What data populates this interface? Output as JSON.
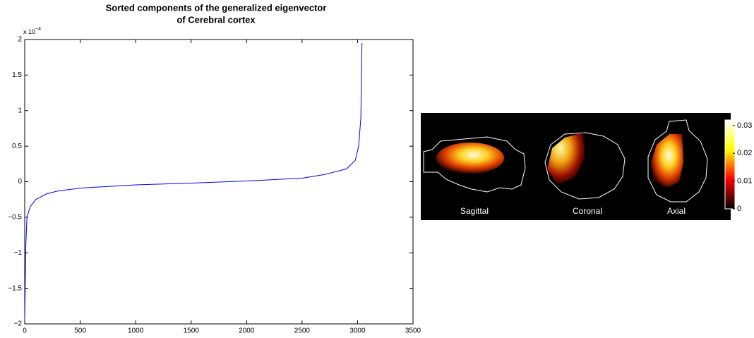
{
  "chart_data": [
    {
      "type": "line",
      "title": [
        "Sorted components of the generalized eigenvector",
        "of Cerebral cortex"
      ],
      "y_multiplier": {
        "base": "x 10",
        "exponent": "−4"
      },
      "x": [
        0,
        10,
        20,
        50,
        100,
        200,
        300,
        500,
        1000,
        1500,
        2000,
        2500,
        2700,
        2900,
        2980,
        3010,
        3030,
        3040
      ],
      "series": [
        {
          "color": "#0000ff",
          "values": [
            -1.95,
            -0.9,
            -0.5,
            -0.35,
            -0.25,
            -0.17,
            -0.13,
            -0.09,
            -0.045,
            -0.02,
            0.01,
            0.05,
            0.1,
            0.18,
            0.3,
            0.5,
            0.9,
            1.95
          ]
        }
      ],
      "xlim": [
        0,
        3500
      ],
      "xticks": [
        0,
        500,
        1000,
        1500,
        2000,
        2500,
        3000,
        3500
      ],
      "ylim": [
        -2,
        2
      ],
      "yticks": [
        {
          "value": -2,
          "label": "−2"
        },
        {
          "value": -1.5,
          "label": "−1.5"
        },
        {
          "value": -1,
          "label": "−1"
        },
        {
          "value": -0.5,
          "label": "−0.5"
        },
        0,
        0.5,
        1,
        1.5,
        2
      ],
      "grid": false
    },
    {
      "type": "colorbar",
      "views": [
        "Sagittal",
        "Coronal",
        "Axial"
      ],
      "colormap": [
        "#000000",
        "#ff0000",
        "#ffff00",
        "#ffffff"
      ],
      "ylim": [
        0,
        0.032
      ],
      "yticks": [
        0,
        0.01,
        0.02,
        0.03
      ]
    }
  ]
}
